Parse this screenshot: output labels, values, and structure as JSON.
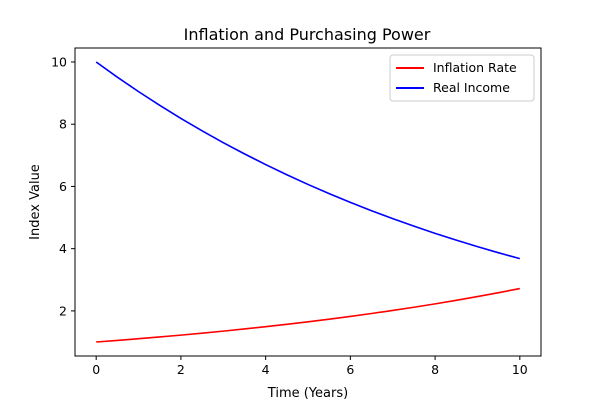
{
  "chart_data": {
    "type": "line",
    "title": "Inflation and Purchasing Power",
    "xlabel": "Time (Years)",
    "ylabel": "Index Value",
    "xlim": [
      -0.5,
      10.5
    ],
    "ylim": [
      0.55,
      10.45
    ],
    "xticks": [
      0,
      2,
      4,
      6,
      8,
      10
    ],
    "yticks": [
      2,
      4,
      6,
      8,
      10
    ],
    "grid": false,
    "legend_position": "top-right",
    "x": [
      0,
      0.5,
      1,
      1.5,
      2,
      2.5,
      3,
      3.5,
      4,
      4.5,
      5,
      5.5,
      6,
      6.5,
      7,
      7.5,
      8,
      8.5,
      9,
      9.5,
      10
    ],
    "series": [
      {
        "name": "Inflation Rate",
        "color": "#ff0000",
        "values": [
          1.0,
          1.051,
          1.105,
          1.162,
          1.221,
          1.284,
          1.35,
          1.419,
          1.492,
          1.568,
          1.649,
          1.733,
          1.822,
          1.916,
          2.014,
          2.117,
          2.226,
          2.34,
          2.46,
          2.586,
          2.718
        ]
      },
      {
        "name": "Real Income",
        "color": "#0000ff",
        "values": [
          10.0,
          9.512,
          9.048,
          8.607,
          8.187,
          7.788,
          7.408,
          7.047,
          6.703,
          6.376,
          6.065,
          5.769,
          5.488,
          5.22,
          4.966,
          4.724,
          4.493,
          4.274,
          4.066,
          3.867,
          3.679
        ]
      }
    ]
  }
}
